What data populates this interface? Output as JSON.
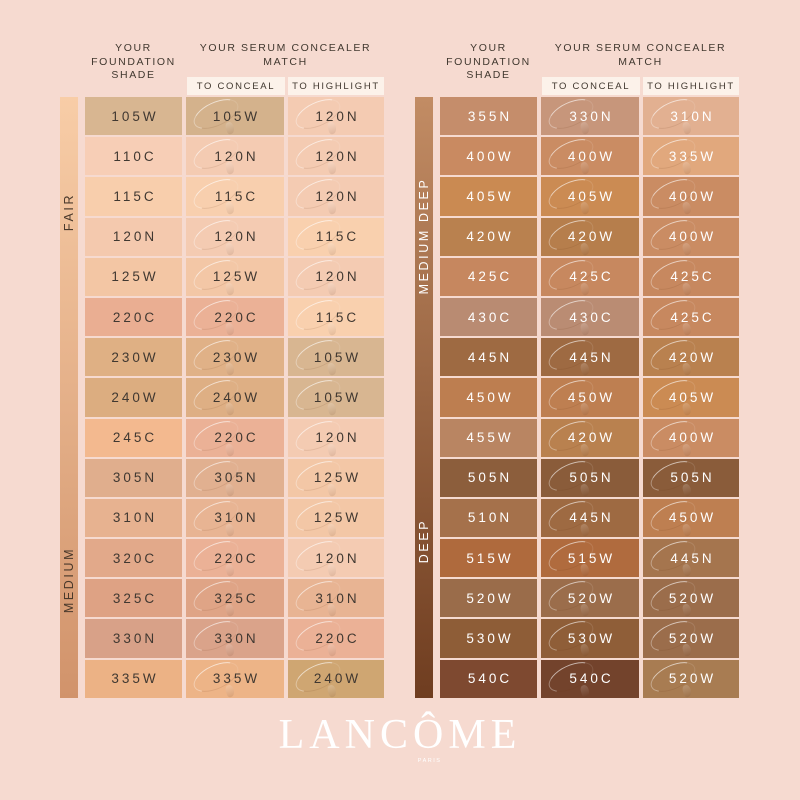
{
  "page": {
    "background": "#F6DAD0"
  },
  "column_headers": {
    "foundation": "YOUR\nFOUNDATION\nSHADE",
    "match": "YOUR SERUM CONCEALER\nMATCH",
    "to_conceal": "TO CONCEAL",
    "to_highlight": "TO HIGHLIGHT",
    "band_color": "#FCF2EA",
    "text_color": "#41382F"
  },
  "logo": {
    "part1": "LANC",
    "o_char": "Ô",
    "part2": "ME",
    "sub": "PARIS",
    "color": "#FFFFFF"
  },
  "tables": [
    {
      "name": "fair-medium",
      "label_color": "#403831",
      "side_label_color": "#4A392B",
      "strip_top": "#F8CDA7",
      "strip_bottom": "#D1936B",
      "side_labels": [
        {
          "label": "FAIR"
        },
        {
          "label": "MEDIUM"
        }
      ],
      "rows": [
        {
          "foundation": {
            "shade": "105W",
            "color": "#D8B691"
          },
          "to_conceal": {
            "shade": "105W",
            "color": "#D4B28C"
          },
          "to_highlight": {
            "shade": "120N",
            "color": "#F4CBB2"
          }
        },
        {
          "foundation": {
            "shade": "110C",
            "color": "#F7CEB6"
          },
          "to_conceal": {
            "shade": "120N",
            "color": "#F4CBB2"
          },
          "to_highlight": {
            "shade": "120N",
            "color": "#F4CBB2"
          }
        },
        {
          "foundation": {
            "shade": "115C",
            "color": "#F8CEAC"
          },
          "to_conceal": {
            "shade": "115C",
            "color": "#F8CFAE"
          },
          "to_highlight": {
            "shade": "120N",
            "color": "#F4CBB2"
          }
        },
        {
          "foundation": {
            "shade": "120N",
            "color": "#F4C9AE"
          },
          "to_conceal": {
            "shade": "120N",
            "color": "#F4CBB2"
          },
          "to_highlight": {
            "shade": "115C",
            "color": "#F9D0AE"
          }
        },
        {
          "foundation": {
            "shade": "125W",
            "color": "#F3C6A4"
          },
          "to_conceal": {
            "shade": "125W",
            "color": "#F3C7A6"
          },
          "to_highlight": {
            "shade": "120N",
            "color": "#F4CBB2"
          }
        },
        {
          "foundation": {
            "shade": "220C",
            "color": "#EAAE92"
          },
          "to_conceal": {
            "shade": "220C",
            "color": "#EBB196"
          },
          "to_highlight": {
            "shade": "115C",
            "color": "#F9D0AE"
          }
        },
        {
          "foundation": {
            "shade": "230W",
            "color": "#DFB084"
          },
          "to_conceal": {
            "shade": "230W",
            "color": "#E0B187"
          },
          "to_highlight": {
            "shade": "105W",
            "color": "#D8B691"
          }
        },
        {
          "foundation": {
            "shade": "240W",
            "color": "#DCAD80"
          },
          "to_conceal": {
            "shade": "240W",
            "color": "#DEAF84"
          },
          "to_highlight": {
            "shade": "105W",
            "color": "#D8B691"
          }
        },
        {
          "foundation": {
            "shade": "245C",
            "color": "#F3B98F"
          },
          "to_conceal": {
            "shade": "220C",
            "color": "#EBB196"
          },
          "to_highlight": {
            "shade": "120N",
            "color": "#F4CBB2"
          }
        },
        {
          "foundation": {
            "shade": "305N",
            "color": "#E0AE8D"
          },
          "to_conceal": {
            "shade": "305N",
            "color": "#E1B090"
          },
          "to_highlight": {
            "shade": "125W",
            "color": "#F3C7A6"
          }
        },
        {
          "foundation": {
            "shade": "310N",
            "color": "#E7B290"
          },
          "to_conceal": {
            "shade": "310N",
            "color": "#E8B493"
          },
          "to_highlight": {
            "shade": "125W",
            "color": "#F3C7A6"
          }
        },
        {
          "foundation": {
            "shade": "320C",
            "color": "#E2A98A"
          },
          "to_conceal": {
            "shade": "220C",
            "color": "#EBB196"
          },
          "to_highlight": {
            "shade": "120N",
            "color": "#F4CBB2"
          }
        },
        {
          "foundation": {
            "shade": "325C",
            "color": "#DEA284"
          },
          "to_conceal": {
            "shade": "325C",
            "color": "#DFA486"
          },
          "to_highlight": {
            "shade": "310N",
            "color": "#E8B493"
          }
        },
        {
          "foundation": {
            "shade": "330N",
            "color": "#D8A188"
          },
          "to_conceal": {
            "shade": "330N",
            "color": "#DAA38A"
          },
          "to_highlight": {
            "shade": "220C",
            "color": "#EBB196"
          }
        },
        {
          "foundation": {
            "shade": "335W",
            "color": "#ECB285"
          },
          "to_conceal": {
            "shade": "335W",
            "color": "#EDB487"
          },
          "to_highlight": {
            "shade": "240W",
            "color": "#CFA672"
          }
        }
      ]
    },
    {
      "name": "medium-deep-deep",
      "label_color": "#FFFFFF",
      "side_label_color": "#FFFFFF",
      "strip_top": "#C28C64",
      "strip_bottom": "#6F3D20",
      "side_labels": [
        {
          "label": "MEDIUM DEEP"
        },
        {
          "label": "DEEP"
        }
      ],
      "rows": [
        {
          "foundation": {
            "shade": "355N",
            "color": "#C58D6B"
          },
          "to_conceal": {
            "shade": "330N",
            "color": "#C7967B"
          },
          "to_highlight": {
            "shade": "310N",
            "color": "#E2B091"
          }
        },
        {
          "foundation": {
            "shade": "400W",
            "color": "#C98A61"
          },
          "to_conceal": {
            "shade": "400W",
            "color": "#CA8C63"
          },
          "to_highlight": {
            "shade": "335W",
            "color": "#E1A87D"
          }
        },
        {
          "foundation": {
            "shade": "405W",
            "color": "#CA8A52"
          },
          "to_conceal": {
            "shade": "405W",
            "color": "#CB8B53"
          },
          "to_highlight": {
            "shade": "400W",
            "color": "#CA8C63"
          }
        },
        {
          "foundation": {
            "shade": "420W",
            "color": "#B9814F"
          },
          "to_conceal": {
            "shade": "420W",
            "color": "#B67E4C"
          },
          "to_highlight": {
            "shade": "400W",
            "color": "#CA8C63"
          }
        },
        {
          "foundation": {
            "shade": "425C",
            "color": "#C6875F"
          },
          "to_conceal": {
            "shade": "425C",
            "color": "#C7885F"
          },
          "to_highlight": {
            "shade": "425C",
            "color": "#C7885F"
          }
        },
        {
          "foundation": {
            "shade": "430C",
            "color": "#B98B72"
          },
          "to_conceal": {
            "shade": "430C",
            "color": "#BA8C73"
          },
          "to_highlight": {
            "shade": "425C",
            "color": "#C7885F"
          }
        },
        {
          "foundation": {
            "shade": "445N",
            "color": "#9E6A42"
          },
          "to_conceal": {
            "shade": "445N",
            "color": "#9E6A42"
          },
          "to_highlight": {
            "shade": "420W",
            "color": "#B9814F"
          }
        },
        {
          "foundation": {
            "shade": "450W",
            "color": "#BD7E50"
          },
          "to_conceal": {
            "shade": "450W",
            "color": "#BE7F51"
          },
          "to_highlight": {
            "shade": "405W",
            "color": "#CB8B53"
          }
        },
        {
          "foundation": {
            "shade": "455W",
            "color": "#B98562"
          },
          "to_conceal": {
            "shade": "420W",
            "color": "#B9814F"
          },
          "to_highlight": {
            "shade": "400W",
            "color": "#CA8C63"
          }
        },
        {
          "foundation": {
            "shade": "505N",
            "color": "#8C5E3C"
          },
          "to_conceal": {
            "shade": "505N",
            "color": "#8A5C3A"
          },
          "to_highlight": {
            "shade": "505N",
            "color": "#8A5C3A"
          }
        },
        {
          "foundation": {
            "shade": "510N",
            "color": "#A5714B"
          },
          "to_conceal": {
            "shade": "445N",
            "color": "#9E6A42"
          },
          "to_highlight": {
            "shade": "450W",
            "color": "#BE7F51"
          }
        },
        {
          "foundation": {
            "shade": "515W",
            "color": "#AF6A3D"
          },
          "to_conceal": {
            "shade": "515W",
            "color": "#B06B3E"
          },
          "to_highlight": {
            "shade": "445N",
            "color": "#A5754E"
          }
        },
        {
          "foundation": {
            "shade": "520W",
            "color": "#9A6C4A"
          },
          "to_conceal": {
            "shade": "520W",
            "color": "#9B6D4B"
          },
          "to_highlight": {
            "shade": "520W",
            "color": "#9B6D4B"
          }
        },
        {
          "foundation": {
            "shade": "530W",
            "color": "#8E5D37"
          },
          "to_conceal": {
            "shade": "530W",
            "color": "#8F5E38"
          },
          "to_highlight": {
            "shade": "520W",
            "color": "#9B6D4B"
          }
        },
        {
          "foundation": {
            "shade": "540C",
            "color": "#7E4930"
          },
          "to_conceal": {
            "shade": "540C",
            "color": "#73432C"
          },
          "to_highlight": {
            "shade": "520W",
            "color": "#A87C52"
          }
        }
      ]
    }
  ]
}
